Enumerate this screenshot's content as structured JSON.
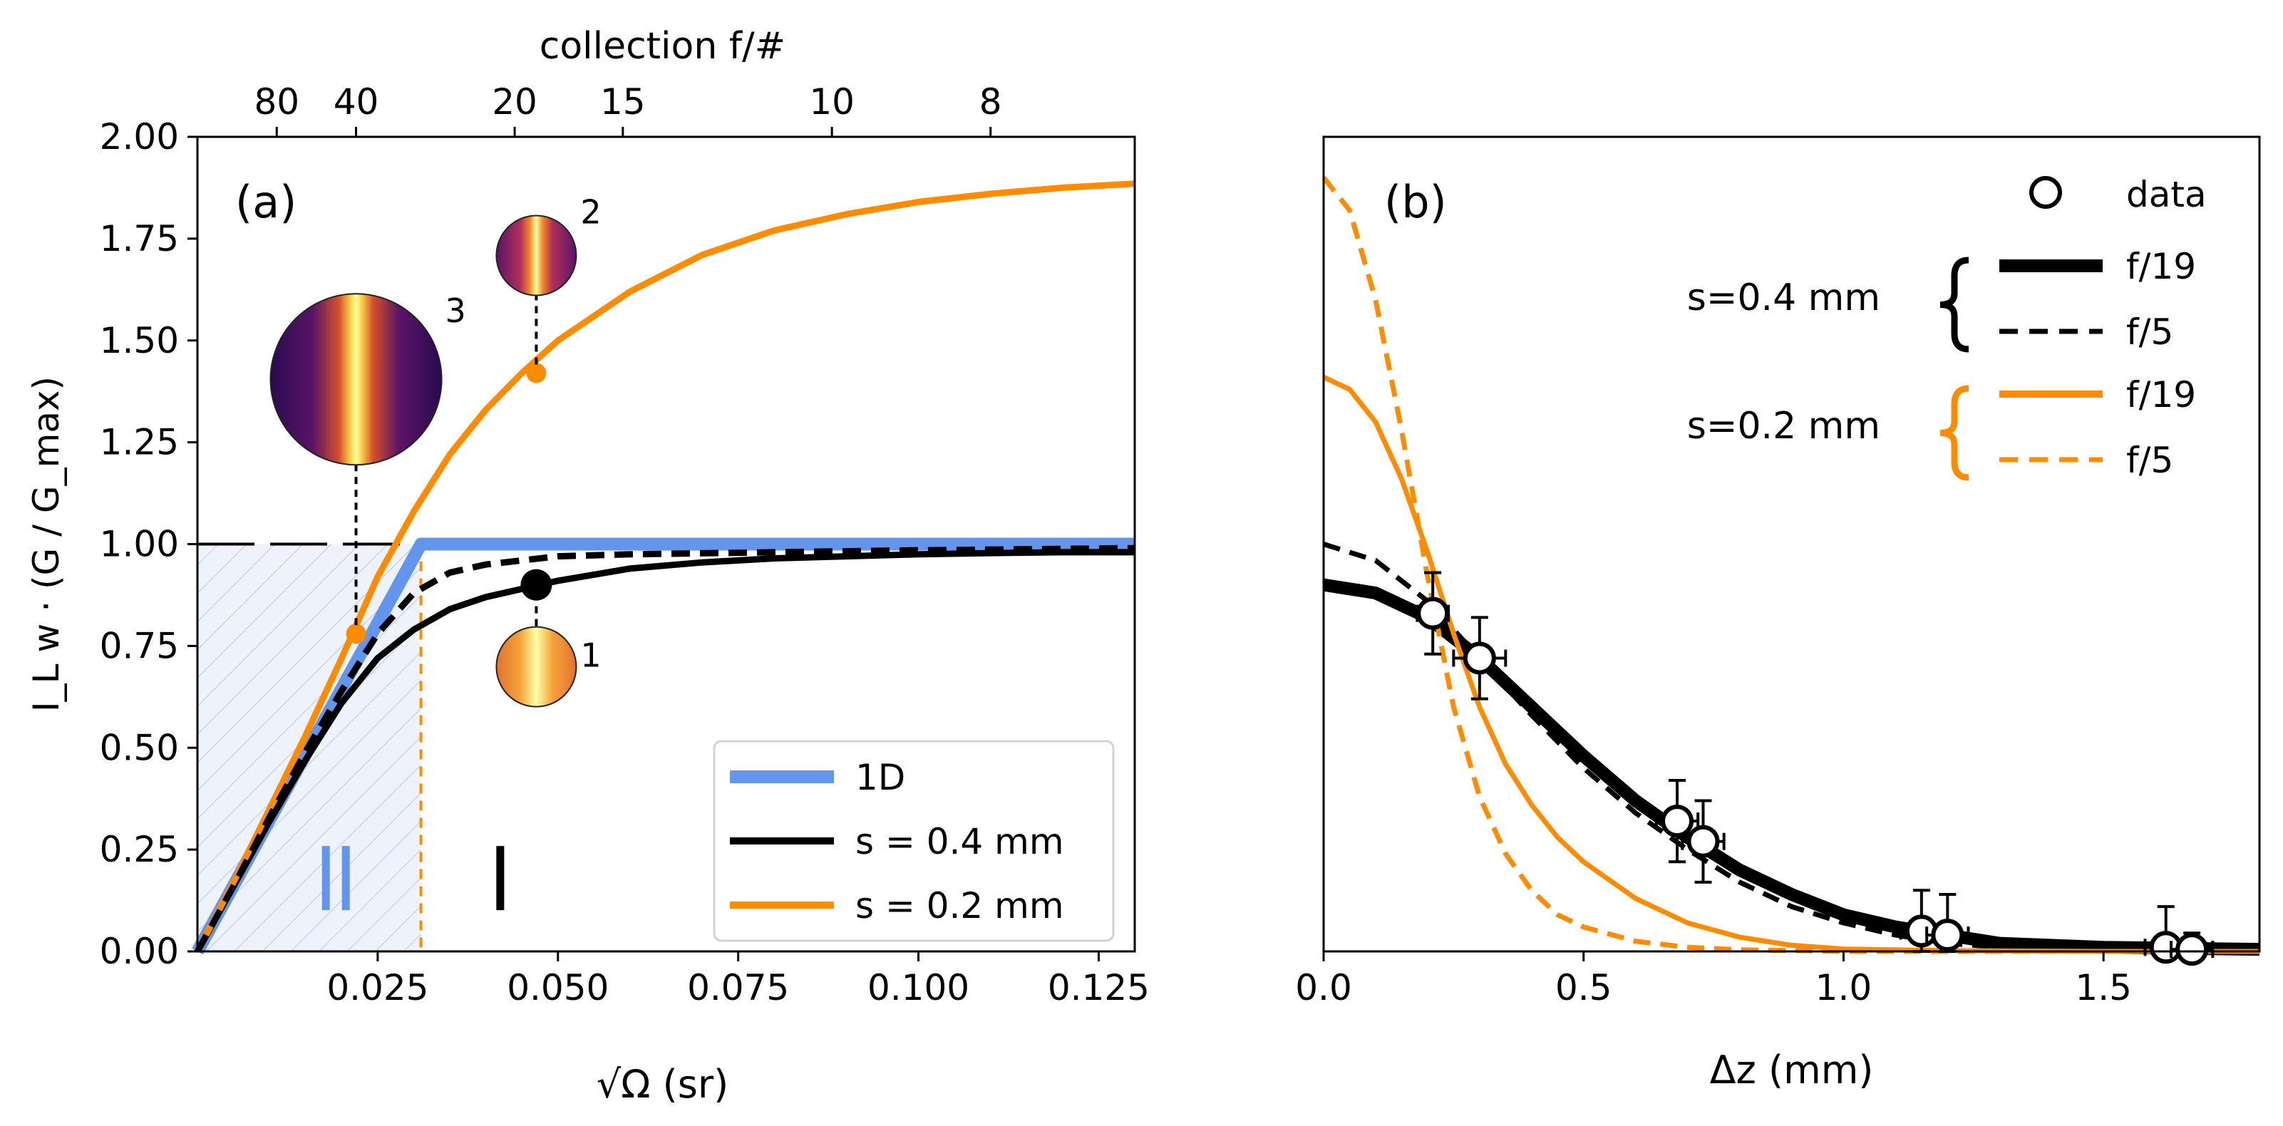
{
  "chart_data": [
    {
      "panel": "(a)",
      "type": "line",
      "xlabel": "√Ω (sr)",
      "ylabel": "I_L w · (G / G_max)",
      "top_xlabel": "collection f/#",
      "xlim": [
        0,
        0.13
      ],
      "ylim": [
        0,
        2.0
      ],
      "x_ticks": [
        "0.025",
        "0.050",
        "0.075",
        "0.100",
        "0.125"
      ],
      "y_ticks": [
        "0.00",
        "0.25",
        "0.50",
        "0.75",
        "1.00",
        "1.25",
        "1.50",
        "1.75",
        "2.00"
      ],
      "top_ticks": [
        {
          "label": "80",
          "x": 0.011
        },
        {
          "label": "40",
          "x": 0.022
        },
        {
          "label": "20",
          "x": 0.044
        },
        {
          "label": "15",
          "x": 0.059
        },
        {
          "label": "10",
          "x": 0.088
        },
        {
          "label": "8",
          "x": 0.11
        }
      ],
      "series": [
        {
          "name": "1D",
          "color": "#6495ED",
          "style": "solid-thick",
          "x": [
            0,
            0.031,
            0.13
          ],
          "y": [
            0,
            1.0,
            1.0
          ]
        },
        {
          "name": "s = 0.4 mm",
          "color": "#000000",
          "style": "solid",
          "x": [
            0,
            0.005,
            0.01,
            0.015,
            0.02,
            0.025,
            0.03,
            0.035,
            0.04,
            0.045,
            0.05,
            0.06,
            0.07,
            0.08,
            0.09,
            0.1,
            0.11,
            0.12,
            0.13
          ],
          "y": [
            0,
            0.16,
            0.32,
            0.47,
            0.61,
            0.72,
            0.79,
            0.84,
            0.87,
            0.89,
            0.91,
            0.94,
            0.955,
            0.965,
            0.97,
            0.975,
            0.978,
            0.98,
            0.98
          ]
        },
        {
          "name": "s = 0.2 mm",
          "color": "#FF8C00",
          "style": "solid",
          "x": [
            0,
            0.005,
            0.01,
            0.015,
            0.02,
            0.025,
            0.03,
            0.035,
            0.04,
            0.045,
            0.05,
            0.06,
            0.07,
            0.08,
            0.09,
            0.1,
            0.11,
            0.12,
            0.13
          ],
          "y": [
            0,
            0.17,
            0.35,
            0.53,
            0.72,
            0.92,
            1.08,
            1.22,
            1.33,
            1.42,
            1.5,
            1.62,
            1.71,
            1.77,
            1.81,
            1.84,
            1.86,
            1.875,
            1.885
          ]
        },
        {
          "name": "s = 0.4 mm (f/5 dashed)",
          "color": "#000000",
          "style": "dashed",
          "legend": false,
          "x": [
            0,
            0.005,
            0.01,
            0.015,
            0.02,
            0.025,
            0.03,
            0.035,
            0.04,
            0.05,
            0.06,
            0.08,
            0.1,
            0.13
          ],
          "y": [
            0,
            0.16,
            0.33,
            0.49,
            0.64,
            0.78,
            0.88,
            0.93,
            0.95,
            0.97,
            0.975,
            0.98,
            0.985,
            0.99
          ]
        }
      ],
      "reference_line": {
        "y": 1.0,
        "style": "long-dash",
        "color": "#000000"
      },
      "cutoff_line": {
        "x": 0.031,
        "color": "#FF8C00",
        "style": "dashed"
      },
      "shaded_region": {
        "x": [
          0,
          0.031
        ],
        "y": [
          0,
          1.0
        ],
        "color": "#6495ED"
      },
      "markers": [
        {
          "label": "1",
          "x": 0.047,
          "y": 0.9,
          "color": "#000000",
          "inset": "uniform"
        },
        {
          "label": "2",
          "x": 0.047,
          "y": 1.42,
          "color": "#FF8C00",
          "inset": "narrow-stripe"
        },
        {
          "label": "3",
          "x": 0.022,
          "y": 0.78,
          "color": "#FF8C00",
          "inset": "wide-stripe"
        }
      ],
      "region_labels": [
        {
          "text": "II",
          "x": 0.019,
          "y": 0.18,
          "color": "#6495ED"
        },
        {
          "text": "I",
          "x": 0.042,
          "y": 0.18,
          "color": "#000000"
        }
      ],
      "legend": {
        "position": "bottom-right",
        "entries": [
          "1D",
          "s = 0.4 mm",
          "s = 0.2 mm"
        ]
      }
    },
    {
      "panel": "(b)",
      "type": "line",
      "xlabel": "Δz (mm)",
      "xlim": [
        0,
        1.8
      ],
      "ylim": [
        0,
        2.0
      ],
      "x_ticks": [
        "0.0",
        "0.5",
        "1.0",
        "1.5"
      ],
      "series": [
        {
          "name": "s=0.4 mm f/19",
          "color": "#000000",
          "style": "solid-thick",
          "x": [
            0,
            0.1,
            0.2,
            0.3,
            0.4,
            0.5,
            0.6,
            0.7,
            0.8,
            0.9,
            1.0,
            1.1,
            1.2,
            1.3,
            1.5,
            1.8
          ],
          "y": [
            0.9,
            0.88,
            0.82,
            0.72,
            0.6,
            0.48,
            0.37,
            0.28,
            0.2,
            0.14,
            0.09,
            0.06,
            0.04,
            0.02,
            0.01,
            0.005
          ]
        },
        {
          "name": "s=0.4 mm f/5",
          "color": "#000000",
          "style": "dashed",
          "x": [
            0,
            0.1,
            0.2,
            0.3,
            0.4,
            0.5,
            0.6,
            0.7,
            0.8,
            0.9,
            1.0,
            1.1,
            1.2,
            1.3,
            1.5,
            1.8
          ],
          "y": [
            1.0,
            0.96,
            0.86,
            0.72,
            0.58,
            0.45,
            0.34,
            0.25,
            0.17,
            0.11,
            0.07,
            0.04,
            0.02,
            0.01,
            0.005,
            0.0
          ]
        },
        {
          "name": "s=0.2 mm f/19",
          "color": "#FF8C00",
          "style": "solid",
          "x": [
            0,
            0.05,
            0.1,
            0.15,
            0.2,
            0.25,
            0.3,
            0.35,
            0.4,
            0.45,
            0.5,
            0.6,
            0.7,
            0.8,
            0.9,
            1.0,
            1.2,
            1.5,
            1.8
          ],
          "y": [
            1.41,
            1.38,
            1.3,
            1.16,
            0.98,
            0.78,
            0.6,
            0.46,
            0.36,
            0.28,
            0.22,
            0.13,
            0.07,
            0.035,
            0.015,
            0.006,
            0.002,
            0.0,
            0.0
          ]
        },
        {
          "name": "s=0.2 mm f/5",
          "color": "#FF8C00",
          "style": "dashed",
          "x": [
            0,
            0.05,
            0.1,
            0.15,
            0.2,
            0.25,
            0.3,
            0.35,
            0.4,
            0.45,
            0.5,
            0.6,
            0.7,
            0.8,
            1.0,
            1.5,
            1.8
          ],
          "y": [
            1.9,
            1.82,
            1.6,
            1.28,
            0.92,
            0.6,
            0.38,
            0.24,
            0.15,
            0.09,
            0.06,
            0.025,
            0.01,
            0.004,
            0.0,
            0.0,
            0.0
          ]
        }
      ],
      "data_points": [
        {
          "x": 0.21,
          "y": 0.83,
          "xerr": 0.03,
          "yerr": 0.1
        },
        {
          "x": 0.3,
          "y": 0.72,
          "xerr": 0.05,
          "yerr": 0.1
        },
        {
          "x": 0.68,
          "y": 0.32,
          "xerr": 0.04,
          "yerr": 0.1
        },
        {
          "x": 0.73,
          "y": 0.27,
          "xerr": 0.04,
          "yerr": 0.1
        },
        {
          "x": 1.15,
          "y": 0.05,
          "xerr": 0.04,
          "yerr": 0.1
        },
        {
          "x": 1.2,
          "y": 0.04,
          "xerr": 0.04,
          "yerr": 0.1
        },
        {
          "x": 1.62,
          "y": 0.01,
          "xerr": 0.04,
          "yerr": 0.1
        },
        {
          "x": 1.67,
          "y": 0.005,
          "xerr": 0.04,
          "yerr": 0.04
        }
      ],
      "legend": {
        "position": "top-right",
        "data_label": "data",
        "groups": [
          {
            "label": "s=0.4 mm",
            "color": "#000000",
            "entries": [
              "f/19",
              "f/5"
            ]
          },
          {
            "label": "s=0.2 mm",
            "color": "#FF8C00",
            "entries": [
              "f/19",
              "f/5"
            ]
          }
        ]
      }
    }
  ]
}
